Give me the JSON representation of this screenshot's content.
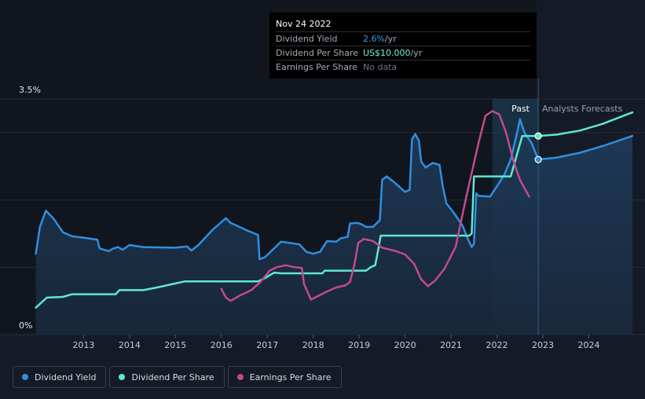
{
  "chart_data": {
    "type": "line",
    "y_axis": {
      "top_label": "3.5%",
      "bottom_label": "0%",
      "min": 0,
      "max": 3.5,
      "unit": "%"
    },
    "x_axis": {
      "ticks": [
        "2013",
        "2014",
        "2015",
        "2016",
        "2017",
        "2018",
        "2019",
        "2020",
        "2021",
        "2022",
        "2023",
        "2024"
      ],
      "range": [
        2011.95,
        2024.95
      ]
    },
    "zones": {
      "past_label": "Past",
      "forecast_label": "Analysts Forecasts",
      "past_highlight_start": 2021.9,
      "divider_x": 2022.9
    },
    "series": [
      {
        "name": "Dividend Yield",
        "color": "#2f8fe0",
        "area": true,
        "points": [
          [
            2011.96,
            1.2
          ],
          [
            2012.05,
            1.6
          ],
          [
            2012.18,
            1.84
          ],
          [
            2012.35,
            1.72
          ],
          [
            2012.55,
            1.52
          ],
          [
            2012.75,
            1.46
          ],
          [
            2013.0,
            1.44
          ],
          [
            2013.3,
            1.41
          ],
          [
            2013.35,
            1.28
          ],
          [
            2013.55,
            1.24
          ],
          [
            2013.65,
            1.28
          ],
          [
            2013.75,
            1.3
          ],
          [
            2013.85,
            1.26
          ],
          [
            2014.0,
            1.33
          ],
          [
            2014.3,
            1.3
          ],
          [
            2015.0,
            1.29
          ],
          [
            2015.25,
            1.31
          ],
          [
            2015.35,
            1.25
          ],
          [
            2015.5,
            1.33
          ],
          [
            2015.8,
            1.55
          ],
          [
            2016.1,
            1.73
          ],
          [
            2016.2,
            1.66
          ],
          [
            2016.55,
            1.55
          ],
          [
            2016.8,
            1.48
          ],
          [
            2016.83,
            1.12
          ],
          [
            2016.95,
            1.15
          ],
          [
            2017.3,
            1.38
          ],
          [
            2017.7,
            1.34
          ],
          [
            2017.85,
            1.23
          ],
          [
            2018.0,
            1.2
          ],
          [
            2018.15,
            1.23
          ],
          [
            2018.3,
            1.39
          ],
          [
            2018.5,
            1.38
          ],
          [
            2018.6,
            1.43
          ],
          [
            2018.75,
            1.45
          ],
          [
            2018.8,
            1.65
          ],
          [
            2018.95,
            1.66
          ],
          [
            2019.05,
            1.64
          ],
          [
            2019.15,
            1.6
          ],
          [
            2019.3,
            1.6
          ],
          [
            2019.45,
            1.7
          ],
          [
            2019.5,
            2.3
          ],
          [
            2019.6,
            2.35
          ],
          [
            2019.75,
            2.27
          ],
          [
            2020.0,
            2.12
          ],
          [
            2020.1,
            2.15
          ],
          [
            2020.15,
            2.9
          ],
          [
            2020.22,
            2.98
          ],
          [
            2020.3,
            2.88
          ],
          [
            2020.35,
            2.57
          ],
          [
            2020.45,
            2.48
          ],
          [
            2020.6,
            2.55
          ],
          [
            2020.75,
            2.52
          ],
          [
            2020.82,
            2.2
          ],
          [
            2020.9,
            1.95
          ],
          [
            2021.05,
            1.82
          ],
          [
            2021.25,
            1.62
          ],
          [
            2021.35,
            1.45
          ],
          [
            2021.45,
            1.3
          ],
          [
            2021.5,
            1.35
          ],
          [
            2021.55,
            2.1
          ],
          [
            2021.6,
            2.06
          ],
          [
            2021.85,
            2.05
          ],
          [
            2021.95,
            2.15
          ],
          [
            2022.15,
            2.36
          ],
          [
            2022.3,
            2.6
          ],
          [
            2022.45,
            3.03
          ],
          [
            2022.5,
            3.2
          ],
          [
            2022.6,
            3.0
          ],
          [
            2022.75,
            2.85
          ],
          [
            2022.9,
            2.6
          ]
        ]
      },
      {
        "name": "Dividend Yield Forecast",
        "color": "#2f8fe0",
        "area": true,
        "points": [
          [
            2022.9,
            2.6
          ],
          [
            2023.3,
            2.63
          ],
          [
            2023.8,
            2.7
          ],
          [
            2024.3,
            2.8
          ],
          [
            2024.95,
            2.95
          ]
        ]
      },
      {
        "name": "Dividend Per Share",
        "color": "#5ee9cf",
        "points": [
          [
            2011.96,
            0.4
          ],
          [
            2012.2,
            0.55
          ],
          [
            2012.55,
            0.56
          ],
          [
            2012.75,
            0.6
          ],
          [
            2013.7,
            0.6
          ],
          [
            2013.78,
            0.66
          ],
          [
            2014.3,
            0.66
          ],
          [
            2014.6,
            0.7
          ],
          [
            2015.0,
            0.76
          ],
          [
            2015.2,
            0.79
          ],
          [
            2016.8,
            0.79
          ],
          [
            2016.95,
            0.84
          ],
          [
            2017.15,
            0.92
          ],
          [
            2017.3,
            0.91
          ],
          [
            2018.2,
            0.91
          ],
          [
            2018.25,
            0.95
          ],
          [
            2019.15,
            0.95
          ],
          [
            2019.25,
            1.0
          ],
          [
            2019.35,
            1.03
          ],
          [
            2019.42,
            1.28
          ],
          [
            2019.47,
            1.47
          ],
          [
            2021.4,
            1.47
          ],
          [
            2021.45,
            1.5
          ],
          [
            2021.5,
            2.35
          ],
          [
            2022.3,
            2.35
          ],
          [
            2022.55,
            2.95
          ],
          [
            2022.9,
            2.95
          ]
        ]
      },
      {
        "name": "Dividend Per Share Forecast",
        "color": "#5ee9cf",
        "points": [
          [
            2022.9,
            2.95
          ],
          [
            2023.3,
            2.97
          ],
          [
            2023.8,
            3.03
          ],
          [
            2024.3,
            3.13
          ],
          [
            2024.95,
            3.3
          ]
        ]
      },
      {
        "name": "Earnings Per Share",
        "color": "#c24a8e",
        "points": [
          [
            2016.0,
            0.68
          ],
          [
            2016.1,
            0.55
          ],
          [
            2016.2,
            0.5
          ],
          [
            2016.4,
            0.58
          ],
          [
            2016.65,
            0.66
          ],
          [
            2016.85,
            0.78
          ],
          [
            2017.05,
            0.95
          ],
          [
            2017.2,
            1.0
          ],
          [
            2017.4,
            1.03
          ],
          [
            2017.6,
            1.0
          ],
          [
            2017.75,
            0.99
          ],
          [
            2017.8,
            0.75
          ],
          [
            2017.95,
            0.52
          ],
          [
            2018.1,
            0.57
          ],
          [
            2018.3,
            0.64
          ],
          [
            2018.5,
            0.7
          ],
          [
            2018.7,
            0.73
          ],
          [
            2018.8,
            0.78
          ],
          [
            2018.9,
            1.05
          ],
          [
            2018.98,
            1.36
          ],
          [
            2019.1,
            1.42
          ],
          [
            2019.3,
            1.39
          ],
          [
            2019.5,
            1.29
          ],
          [
            2019.8,
            1.24
          ],
          [
            2020.0,
            1.19
          ],
          [
            2020.2,
            1.05
          ],
          [
            2020.35,
            0.82
          ],
          [
            2020.5,
            0.72
          ],
          [
            2020.65,
            0.8
          ],
          [
            2020.85,
            0.97
          ],
          [
            2021.1,
            1.3
          ],
          [
            2021.35,
            2.1
          ],
          [
            2021.6,
            2.85
          ],
          [
            2021.75,
            3.25
          ],
          [
            2021.9,
            3.32
          ],
          [
            2022.05,
            3.27
          ],
          [
            2022.2,
            3.0
          ],
          [
            2022.35,
            2.6
          ],
          [
            2022.5,
            2.3
          ],
          [
            2022.7,
            2.05
          ]
        ]
      }
    ],
    "markers": [
      {
        "series": "Dividend Yield",
        "x": 2022.9,
        "y": 2.6
      },
      {
        "series": "Dividend Per Share",
        "x": 2022.9,
        "y": 2.95
      }
    ]
  },
  "tooltip": {
    "date": "Nov 24 2022",
    "rows": [
      {
        "label": "Dividend Yield",
        "value": "2.6%",
        "unit": " /yr"
      },
      {
        "label": "Dividend Per Share",
        "value": "US$10.000",
        "unit": " /yr"
      },
      {
        "label": "Earnings Per Share",
        "value": "No data",
        "unit": ""
      }
    ]
  },
  "legend": [
    {
      "label": "Dividend Yield",
      "color": "#2f8fe0"
    },
    {
      "label": "Dividend Per Share",
      "color": "#5ee9cf"
    },
    {
      "label": "Earnings Per Share",
      "color": "#c24a8e"
    }
  ]
}
